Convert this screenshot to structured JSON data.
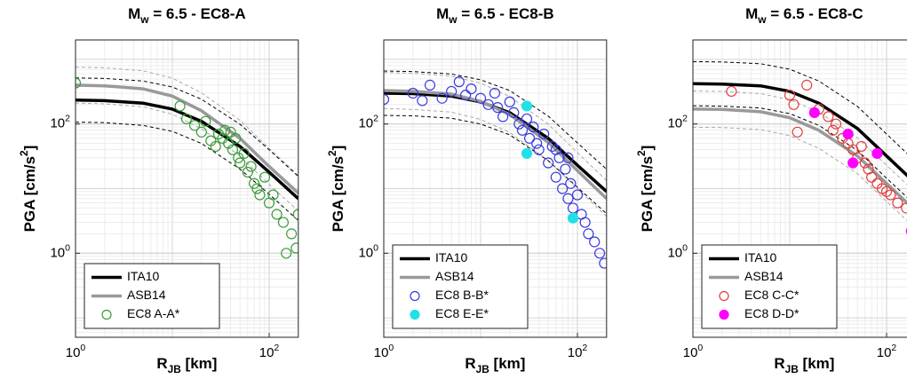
{
  "chart_data": [
    {
      "type": "line",
      "title": {
        "base": "M",
        "sub": "w",
        "end": " = 6.5 - EC8-A"
      },
      "xlabel": {
        "base": "R",
        "sub": "JB",
        "end": " [km]"
      },
      "ylabel": {
        "base": "PGA [cm/s",
        "sup": "2",
        "end": "]"
      },
      "xscale": "log",
      "yscale": "log",
      "grid": true,
      "legend": "lower left",
      "xlim": [
        1,
        200
      ],
      "ylim": [
        0.05,
        2000
      ],
      "xticks": [
        {
          "value": 1,
          "label": {
            "base": "10",
            "sup": "0"
          }
        },
        {
          "value": 100,
          "label": {
            "base": "10",
            "sup": "2"
          }
        }
      ],
      "yticks": [
        {
          "value": 1,
          "label": {
            "base": "10",
            "sup": "0"
          }
        },
        {
          "value": 100,
          "label": {
            "base": "10",
            "sup": "2"
          }
        }
      ],
      "x": [
        1,
        2,
        5,
        10,
        20,
        50,
        100,
        200
      ],
      "series": [
        {
          "color": "#aaaaaa",
          "dash": true,
          "values": [
            760,
            741,
            665,
            513,
            304,
            114,
            42,
            16
          ]
        },
        {
          "color": "#aaaaaa",
          "dash": true,
          "values": [
            211,
            205,
            184,
            142,
            84,
            32,
            11.6,
            4.5
          ]
        },
        {
          "color": "#000000",
          "dash": true,
          "values": [
            517,
            506,
            462,
            374,
            242,
            99,
            40,
            15.4
          ]
        },
        {
          "color": "#000000",
          "dash": true,
          "values": [
            107,
            105,
            95,
            77,
            50,
            20,
            8.2,
            3.2
          ]
        },
        {
          "name": "ITA10",
          "color": "#000000",
          "values": [
            235,
            230,
            210,
            170,
            110,
            45,
            18,
            7
          ]
        },
        {
          "name": "ASB14",
          "color": "#999999",
          "values": [
            400,
            390,
            350,
            270,
            160,
            60,
            22,
            8.5
          ]
        },
        {
          "name": "EC8 A-A*",
          "color": "#3a9b3a",
          "marker": "open",
          "x": [
            1,
            12,
            14,
            17,
            20,
            22,
            25,
            28,
            30,
            33,
            35,
            38,
            40,
            42,
            45,
            48,
            50,
            55,
            60,
            65,
            70,
            75,
            80,
            90,
            100,
            110,
            120,
            140,
            150,
            170,
            190,
            200
          ],
          "values": [
            430,
            190,
            120,
            95,
            75,
            110,
            55,
            45,
            70,
            60,
            80,
            50,
            75,
            40,
            60,
            30,
            25,
            35,
            18,
            22,
            12,
            10,
            8,
            15,
            6,
            8,
            4,
            3,
            1,
            2,
            1.2,
            4
          ]
        }
      ]
    },
    {
      "type": "line",
      "title": {
        "base": "M",
        "sub": "w",
        "end": " = 6.5 - EC8-B"
      },
      "xlabel": {
        "base": "R",
        "sub": "JB",
        "end": " [km]"
      },
      "ylabel": {
        "base": "PGA [cm/s",
        "sup": "2",
        "end": "]"
      },
      "xscale": "log",
      "yscale": "log",
      "grid": true,
      "legend": "lower left",
      "xlim": [
        1,
        200
      ],
      "ylim": [
        0.05,
        2000
      ],
      "xticks": [
        {
          "value": 1,
          "label": {
            "base": "10",
            "sup": "0"
          }
        },
        {
          "value": 100,
          "label": {
            "base": "10",
            "sup": "2"
          }
        }
      ],
      "yticks": [
        {
          "value": 1,
          "label": {
            "base": "10",
            "sup": "0"
          }
        },
        {
          "value": 100,
          "label": {
            "base": "10",
            "sup": "2"
          }
        }
      ],
      "x": [
        1,
        2,
        5,
        10,
        20,
        50,
        100,
        200
      ],
      "series": [
        {
          "color": "#aaaaaa",
          "dash": true,
          "values": [
            627,
            608,
            551,
            428,
            266,
            99,
            36,
            13.3
          ]
        },
        {
          "color": "#aaaaaa",
          "dash": true,
          "values": [
            174,
            168,
            153,
            118,
            74,
            27,
            10,
            3.7
          ]
        },
        {
          "color": "#000000",
          "dash": true,
          "values": [
            660,
            649,
            594,
            484,
            330,
            132,
            51,
            20
          ]
        },
        {
          "color": "#000000",
          "dash": true,
          "values": [
            136,
            134,
            123,
            100,
            68,
            27,
            10.5,
            4.1
          ]
        },
        {
          "name": "ITA10",
          "color": "#000000",
          "values": [
            300,
            295,
            270,
            220,
            150,
            60,
            23,
            9
          ]
        },
        {
          "name": "ASB14",
          "color": "#999999",
          "values": [
            330,
            320,
            290,
            225,
            140,
            52,
            19,
            7
          ]
        },
        {
          "name": "EC8 B-B*",
          "color": "#3a3adf",
          "marker": "open",
          "x": [
            1,
            2,
            2.5,
            3,
            4,
            5,
            6,
            7,
            8,
            10,
            12,
            14,
            15,
            17,
            20,
            22,
            25,
            27,
            30,
            32,
            35,
            38,
            40,
            45,
            50,
            55,
            60,
            65,
            70,
            75,
            80,
            85,
            90,
            100,
            110,
            120,
            130,
            150,
            170,
            190,
            60,
            80
          ],
          "values": [
            240,
            300,
            230,
            400,
            250,
            320,
            450,
            280,
            350,
            250,
            200,
            300,
            180,
            130,
            220,
            150,
            100,
            80,
            120,
            60,
            90,
            50,
            40,
            70,
            25,
            45,
            15,
            30,
            10,
            20,
            7,
            12,
            5,
            8,
            4,
            3,
            2,
            1.5,
            1,
            0.7,
            40,
            30
          ]
        },
        {
          "name": "EC8 E-E*",
          "color": "#22e0e8",
          "marker": "filled",
          "x": [
            30,
            30,
            90
          ],
          "values": [
            190,
            35,
            3.5
          ]
        }
      ]
    },
    {
      "type": "line",
      "title": {
        "base": "M",
        "sub": "w",
        "end": " = 6.5 - EC8-C"
      },
      "xlabel": {
        "base": "R",
        "sub": "JB",
        "end": " [km]"
      },
      "ylabel": {
        "base": "PGA [cm/s",
        "sup": "2",
        "end": "]"
      },
      "xscale": "log",
      "yscale": "log",
      "grid": true,
      "legend": "lower left",
      "xlim": [
        1,
        200
      ],
      "ylim": [
        0.05,
        2000
      ],
      "xticks": [
        {
          "value": 1,
          "label": {
            "base": "10",
            "sup": "0"
          }
        },
        {
          "value": 100,
          "label": {
            "base": "10",
            "sup": "2"
          }
        }
      ],
      "yticks": [
        {
          "value": 1,
          "label": {
            "base": "10",
            "sup": "0"
          }
        },
        {
          "value": 100,
          "label": {
            "base": "10",
            "sup": "2"
          }
        }
      ],
      "x": [
        1,
        2,
        5,
        10,
        20,
        50,
        100,
        200
      ],
      "series": [
        {
          "color": "#aaaaaa",
          "dash": true,
          "values": [
            323,
            319,
            295,
            238,
            152,
            61,
            23,
            8.6
          ]
        },
        {
          "color": "#aaaaaa",
          "dash": true,
          "values": [
            89,
            88,
            82,
            66,
            42,
            17,
            6.3,
            2.4
          ]
        },
        {
          "color": "#000000",
          "dash": true,
          "values": [
            924,
            913,
            858,
            704,
            462,
            187,
            70,
            26
          ]
        },
        {
          "color": "#000000",
          "dash": true,
          "values": [
            191,
            189,
            177,
            145,
            95,
            39,
            14.5,
            5.5
          ]
        },
        {
          "name": "ITA10",
          "color": "#000000",
          "values": [
            420,
            415,
            390,
            320,
            210,
            85,
            32,
            12
          ]
        },
        {
          "name": "ASB14",
          "color": "#999999",
          "values": [
            170,
            168,
            155,
            125,
            80,
            32,
            12,
            4.5
          ]
        },
        {
          "name": "EC8 C-C*",
          "color": "#e04040",
          "marker": "open",
          "x": [
            2.5,
            10,
            11,
            12,
            15,
            20,
            25,
            28,
            30,
            35,
            40,
            45,
            50,
            55,
            60,
            65,
            70,
            80,
            90,
            100,
            110,
            130,
            160
          ],
          "values": [
            320,
            280,
            200,
            75,
            400,
            170,
            130,
            80,
            100,
            60,
            50,
            40,
            30,
            45,
            25,
            20,
            15,
            12,
            10,
            9,
            8,
            6,
            5
          ]
        },
        {
          "name": "EC8 D-D*",
          "color": "#ff00ff",
          "marker": "filled",
          "x": [
            18,
            40,
            45,
            80,
            180
          ],
          "values": [
            150,
            70,
            25,
            35,
            2.2
          ]
        }
      ]
    }
  ]
}
